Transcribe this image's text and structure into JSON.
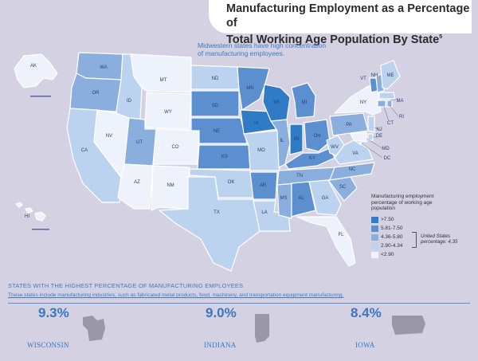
{
  "title_line1": "Manufacturing Employment as a Percentage of",
  "title_line2": "Total Working Age Population By State",
  "title_footnote": "5",
  "callout_line1": "Midwestern states have high concentration",
  "callout_line2": "of manufacturing employees.",
  "legend": {
    "title_line1": "Manufacturing employment",
    "title_line2": "percentage of working age",
    "title_line3": "population",
    "bins": [
      {
        "label": ">7.50",
        "color": "#2f7bc6"
      },
      {
        "label": "5.81-7.50",
        "color": "#5b8fd0"
      },
      {
        "label": "4.36-5.80",
        "color": "#8aaedd"
      },
      {
        "label": "2.90-4.34",
        "color": "#bcd3ef"
      },
      {
        "label": "<2.90",
        "color": "#eef2fb"
      }
    ],
    "us_note_line1": "United States",
    "us_note_line2": "percentage: 4.35"
  },
  "states": {
    "WA": "WA",
    "OR": "OR",
    "CA": "CA",
    "ID": "ID",
    "NV": "NV",
    "MT": "MT",
    "WY": "WY",
    "UT": "UT",
    "AZ": "AZ",
    "CO": "CO",
    "NM": "NM",
    "ND": "ND",
    "SD": "SD",
    "NE": "NE",
    "KS": "KS",
    "OK": "OK",
    "TX": "TX",
    "MN": "MN",
    "IA": "IA",
    "MO": "MO",
    "AR": "AR",
    "LA": "LA",
    "WI": "WI",
    "IL": "IL",
    "MS": "MS",
    "MI": "MI",
    "IN": "IN",
    "KY": "KY",
    "TN": "TN",
    "AL": "AL",
    "OH": "OH",
    "GA": "GA",
    "FL": "FL",
    "SC": "SC",
    "NC": "NC",
    "WV": "WV",
    "VA": "VA",
    "PA": "PA",
    "NY": "NY",
    "VT": "VT",
    "NH": "NH",
    "ME": "ME",
    "MA": "MA",
    "CT": "CT",
    "RI": "RI",
    "NJ": "NJ",
    "DE": "DE",
    "MD": "MD",
    "DC": "DC",
    "AK": "AK",
    "HI": "HI"
  },
  "bottom": {
    "heading": "STATES WITH THE HIGHEST PERCENTAGE OF MANUFACTURING EMPLOYEES",
    "subheading": "These states include manufacturing industries, such as fabricated metal products, food, machinery, and transportation equipment manufacturing.",
    "items": [
      {
        "pct": "9.3%",
        "name": "WISCONSIN"
      },
      {
        "pct": "9.0%",
        "name": "INDIANA"
      },
      {
        "pct": "8.4%",
        "name": "IOWA"
      }
    ]
  }
}
